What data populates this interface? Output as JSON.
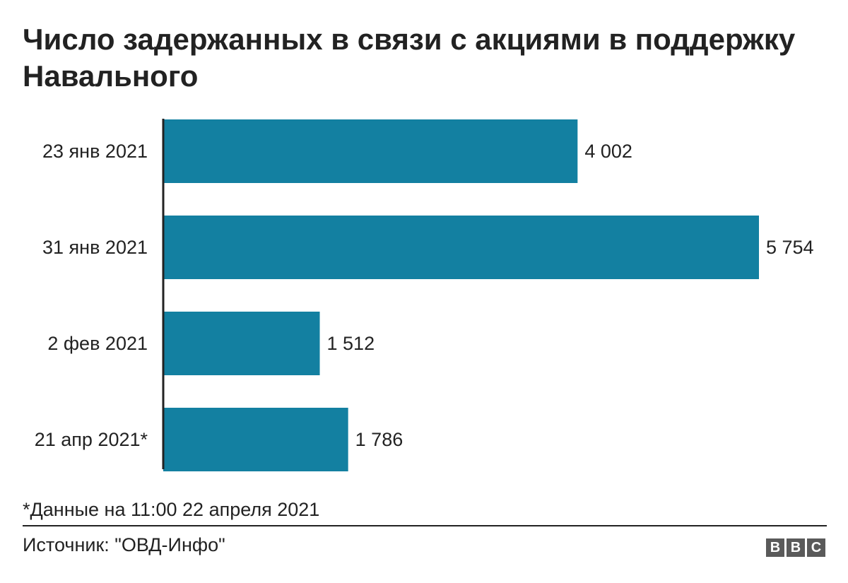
{
  "chart_data": {
    "type": "bar",
    "orientation": "horizontal",
    "title": "Число задержанных в связи с акциями в поддержку Навального",
    "categories": [
      "23 янв 2021",
      "31 янв 2021",
      "2 фев 2021",
      "21 апр 2021*"
    ],
    "values": [
      4002,
      5754,
      1512,
      1786
    ],
    "value_labels": [
      "4 002",
      "5 754",
      "1 512",
      "1 786"
    ],
    "xlim": [
      0,
      5754
    ],
    "grid": false,
    "bar_color": "#1380A1"
  },
  "footnote": "*Данные на 11:00 22 апреля 2021",
  "source": "Источник: \"ОВД-Инфо\"",
  "logo": {
    "letters": [
      "B",
      "B",
      "C"
    ],
    "color": "#5a5a5a"
  }
}
